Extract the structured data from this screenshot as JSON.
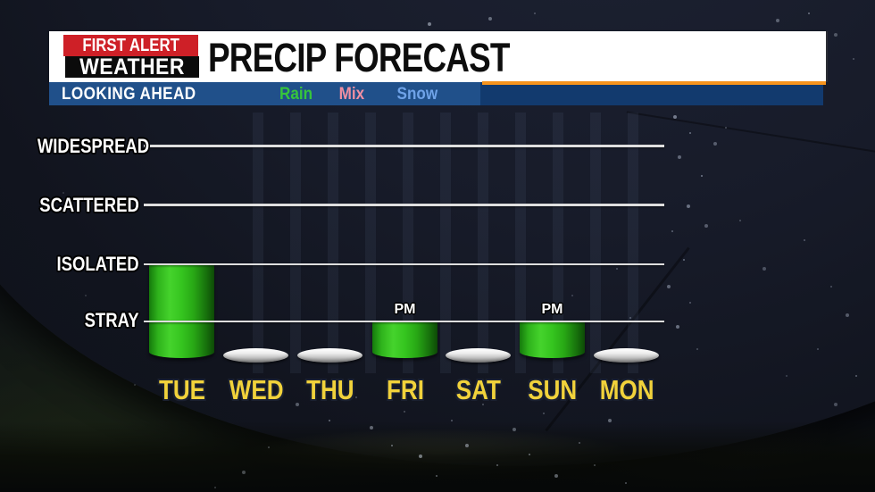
{
  "header": {
    "logo_line1": "FIRST ALERT",
    "logo_line2": "WEATHER",
    "title": "PRECIP FORECAST"
  },
  "subheader": {
    "label": "LOOKING AHEAD",
    "legend": [
      {
        "label": "Rain",
        "color": "#36c53c"
      },
      {
        "label": "Mix",
        "color": "#f08fa2"
      },
      {
        "label": "Snow",
        "color": "#6fa3e8"
      }
    ]
  },
  "chart_data": {
    "type": "bar",
    "title": "PRECIP FORECAST",
    "categories": [
      "TUE",
      "WED",
      "THU",
      "FRI",
      "SAT",
      "SUN",
      "MON"
    ],
    "values": [
      2,
      0,
      0,
      1,
      0,
      1,
      0
    ],
    "value_scale": {
      "0": "NONE",
      "1": "STRAY",
      "2": "ISOLATED",
      "3": "SCATTERED",
      "4": "WIDESPREAD"
    },
    "annotations": [
      "",
      "",
      "",
      "PM",
      "",
      "PM",
      ""
    ],
    "y_axis_labels": [
      "WIDESPREAD",
      "SCATTERED",
      "ISOLATED",
      "STRAY"
    ],
    "series_name": "Rain",
    "bar_color": "#35c51f",
    "empty_disc_color": "#d9d9d9",
    "day_label_color": "#f1d23b",
    "accent_orange": "#f7941d",
    "subbar_blue": "#20508a",
    "grid_on": true,
    "legend_position": "top"
  }
}
